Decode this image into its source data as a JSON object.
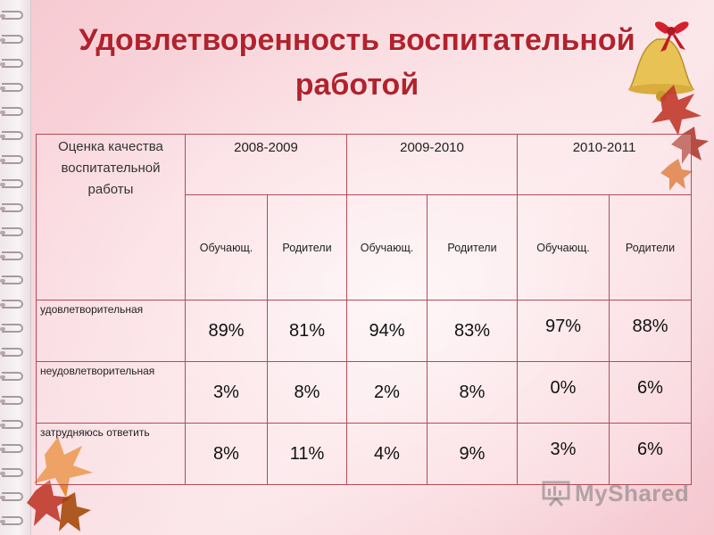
{
  "title": {
    "line1": "Удовлетворенность воспитательной",
    "line2": "работой"
  },
  "table": {
    "corner_label": "Оценка качества воспитательной работы",
    "years": [
      "2008-2009",
      "2009-2010",
      "2010-2011"
    ],
    "subheaders": [
      "Обучающ.",
      "Родители",
      "Обучающ.",
      "Родители",
      "Обучающ.",
      "Родители"
    ],
    "rows": [
      {
        "label": "удовлетворительная",
        "values": [
          "89%",
          "81%",
          "94%",
          "83%",
          "97%",
          "88%"
        ]
      },
      {
        "label": "неудовлетворительная",
        "values": [
          "3%",
          "8%",
          "2%",
          "8%",
          "0%",
          "6%"
        ]
      },
      {
        "label": "затрудняюсь ответить",
        "values": [
          "8%",
          "11%",
          "4%",
          "9%",
          "3%",
          "6%"
        ]
      }
    ]
  },
  "watermark": {
    "text": "MyShared"
  },
  "colors": {
    "title": "#b3222c",
    "border": "#b64a55"
  }
}
